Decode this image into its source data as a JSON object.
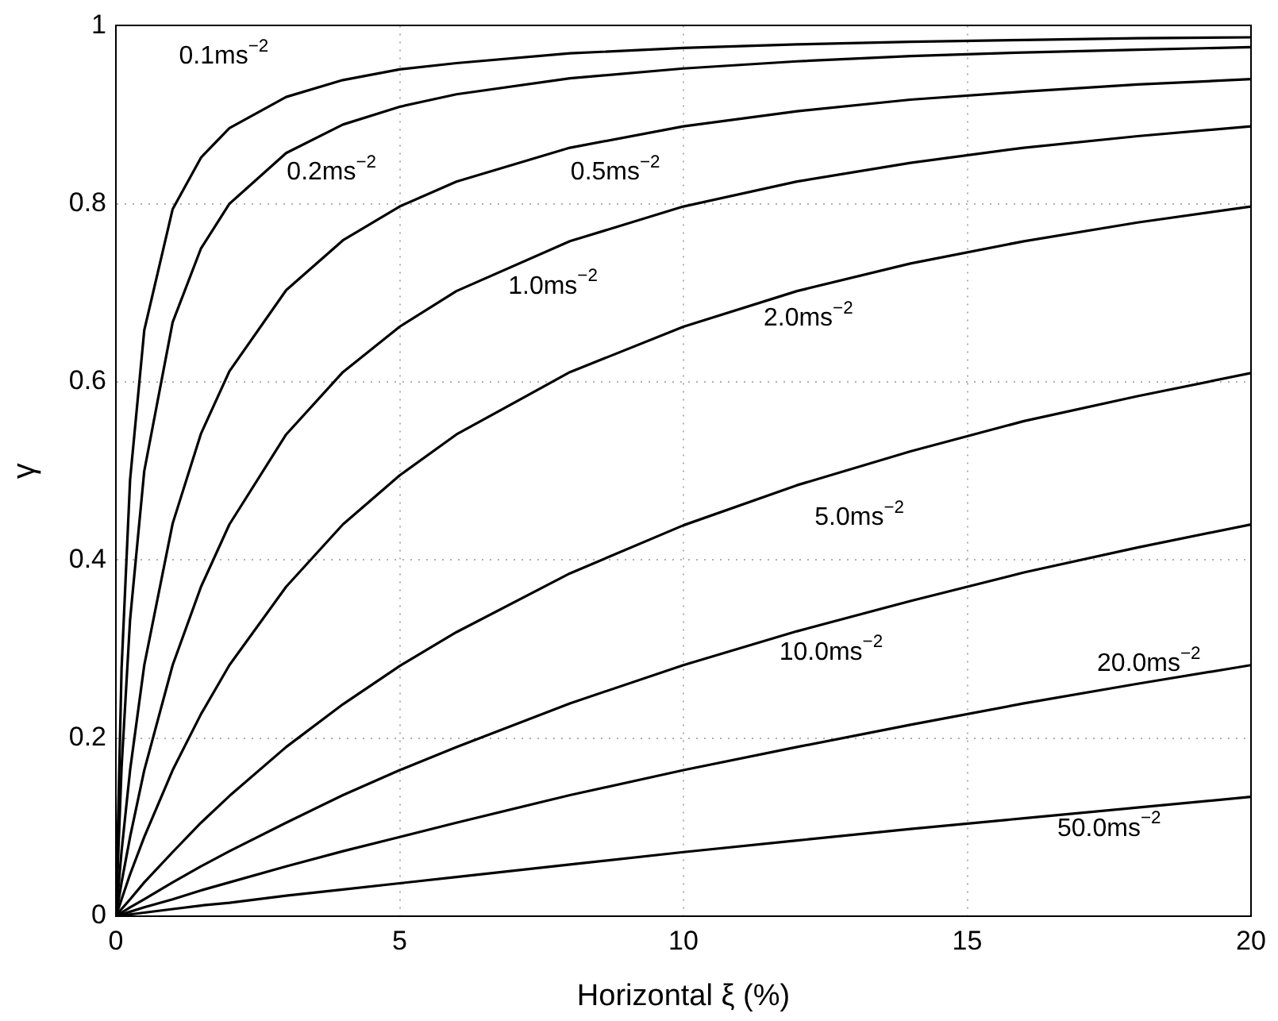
{
  "chart_data": {
    "type": "line",
    "xlabel": "Horizontal ξ (%)",
    "ylabel": "γ",
    "x": [
      0,
      0.1,
      0.25,
      0.5,
      1,
      1.5,
      2,
      3,
      4,
      5,
      6,
      8,
      10,
      12,
      14,
      16,
      18,
      20
    ],
    "series": [
      {
        "name": "0.1ms$^{−2}$",
        "color": "#000000",
        "values": [
          0,
          0.278,
          0.49,
          0.658,
          0.794,
          0.852,
          0.885,
          0.92,
          0.939,
          0.951,
          0.958,
          0.969,
          0.975,
          0.979,
          0.982,
          0.984,
          0.986,
          0.987
        ]
      },
      {
        "name": "0.2ms$^{−2}$",
        "color": "#000000",
        "values": [
          0,
          0.167,
          0.333,
          0.5,
          0.667,
          0.75,
          0.8,
          0.857,
          0.889,
          0.909,
          0.923,
          0.941,
          0.952,
          0.96,
          0.966,
          0.97,
          0.973,
          0.976
        ]
      },
      {
        "name": "0.5ms$^{−2}$",
        "color": "#000000",
        "values": [
          0,
          0.073,
          0.164,
          0.282,
          0.441,
          0.542,
          0.612,
          0.703,
          0.759,
          0.797,
          0.825,
          0.863,
          0.887,
          0.904,
          0.917,
          0.926,
          0.934,
          0.94
        ]
      },
      {
        "name": "1.0ms$^{−2}$",
        "color": "#000000",
        "values": [
          0,
          0.038,
          0.089,
          0.164,
          0.282,
          0.37,
          0.44,
          0.541,
          0.611,
          0.662,
          0.702,
          0.758,
          0.797,
          0.825,
          0.846,
          0.863,
          0.876,
          0.887
        ]
      },
      {
        "name": "2.0ms$^{−2}$",
        "color": "#000000",
        "values": [
          0,
          0.019,
          0.047,
          0.089,
          0.164,
          0.227,
          0.282,
          0.37,
          0.44,
          0.495,
          0.541,
          0.611,
          0.662,
          0.702,
          0.733,
          0.758,
          0.779,
          0.797
        ]
      },
      {
        "name": "5.0ms$^{−2}$",
        "color": "#000000",
        "values": [
          0,
          0.008,
          0.019,
          0.038,
          0.072,
          0.105,
          0.135,
          0.19,
          0.238,
          0.281,
          0.319,
          0.385,
          0.439,
          0.484,
          0.522,
          0.556,
          0.584,
          0.61
        ]
      },
      {
        "name": "10.0ms$^{−2}$",
        "color": "#000000",
        "values": [
          0,
          0.004,
          0.01,
          0.019,
          0.038,
          0.056,
          0.073,
          0.105,
          0.136,
          0.164,
          0.19,
          0.239,
          0.282,
          0.32,
          0.354,
          0.386,
          0.414,
          0.44
        ]
      },
      {
        "name": "20.0ms$^{−2}$",
        "color": "#000000",
        "values": [
          0,
          0.002,
          0.005,
          0.01,
          0.019,
          0.029,
          0.038,
          0.056,
          0.073,
          0.089,
          0.105,
          0.136,
          0.164,
          0.19,
          0.215,
          0.239,
          0.261,
          0.282
        ]
      },
      {
        "name": "50.0ms$^{−2}$",
        "color": "#000000",
        "values": [
          0,
          0.001,
          0.002,
          0.004,
          0.008,
          0.012,
          0.015,
          0.023,
          0.03,
          0.037,
          0.044,
          0.058,
          0.072,
          0.085,
          0.098,
          0.11,
          0.122,
          0.134
        ]
      }
    ],
    "xlim": [
      0,
      20
    ],
    "xticks": [
      0,
      5,
      10,
      15,
      20
    ],
    "ylim": [
      0,
      1
    ],
    "yticks": [
      0,
      0.2,
      0.4,
      0.6,
      0.8,
      1
    ],
    "grid": true,
    "legend": false,
    "marker": "none",
    "line_style": "solid"
  }
}
